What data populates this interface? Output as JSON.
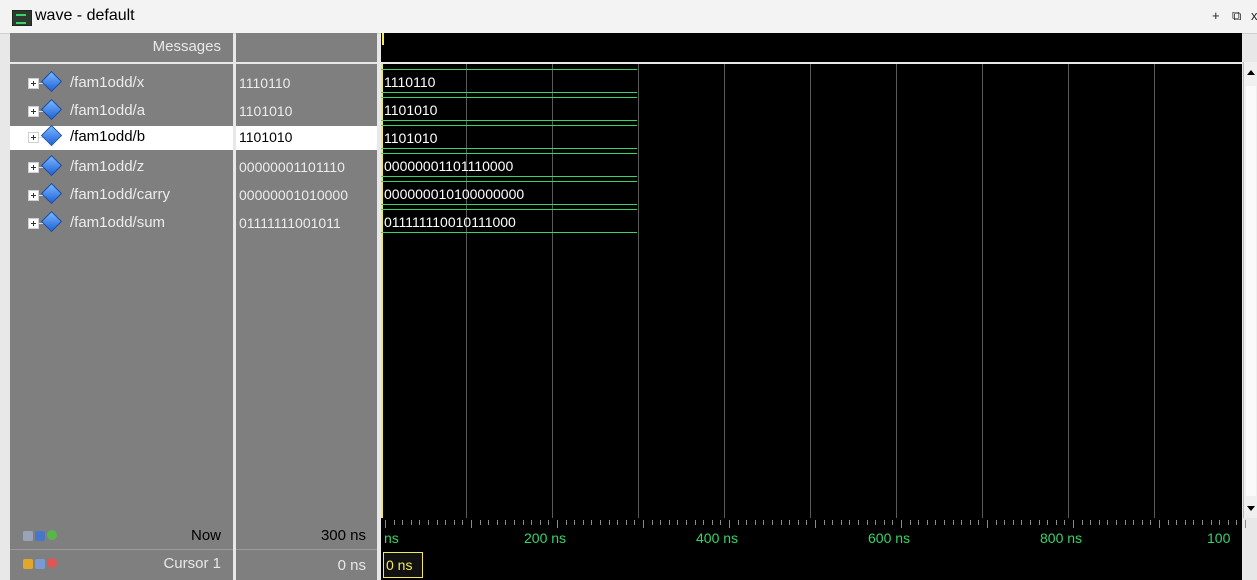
{
  "window": {
    "title": "wave - default",
    "maximize_icon": "+",
    "undock_icon": "⧉",
    "close_icon": "x"
  },
  "headers": {
    "messages": "Messages"
  },
  "signals": [
    {
      "name": "/fam1odd/x",
      "value": "1110110",
      "wave_value": "1110110",
      "selected": false
    },
    {
      "name": "/fam1odd/a",
      "value": "1101010",
      "wave_value": "1101010",
      "selected": false
    },
    {
      "name": "/fam1odd/b",
      "value": "1101010",
      "wave_value": "1101010",
      "selected": true
    },
    {
      "name": "/fam1odd/z",
      "value": "00000001101110",
      "wave_value": "00000001101110000",
      "selected": false
    },
    {
      "name": "/fam1odd/carry",
      "value": "00000001010000",
      "wave_value": "000000010100000000",
      "selected": false
    },
    {
      "name": "/fam1odd/sum",
      "value": "01111111001011",
      "wave_value": "011111110010111000",
      "selected": false
    }
  ],
  "footer": {
    "now_label": "Now",
    "now_value": "300 ns",
    "cursor_label": "Cursor 1",
    "cursor_value": "0 ns",
    "cursor_marker": "0 ns",
    "time_labels": [
      "ns",
      "200 ns",
      "400 ns",
      "600 ns",
      "800 ns",
      "100"
    ]
  },
  "colors": {
    "wave": "#36d56a",
    "cursor": "#f4e85c",
    "background": "#000000"
  }
}
